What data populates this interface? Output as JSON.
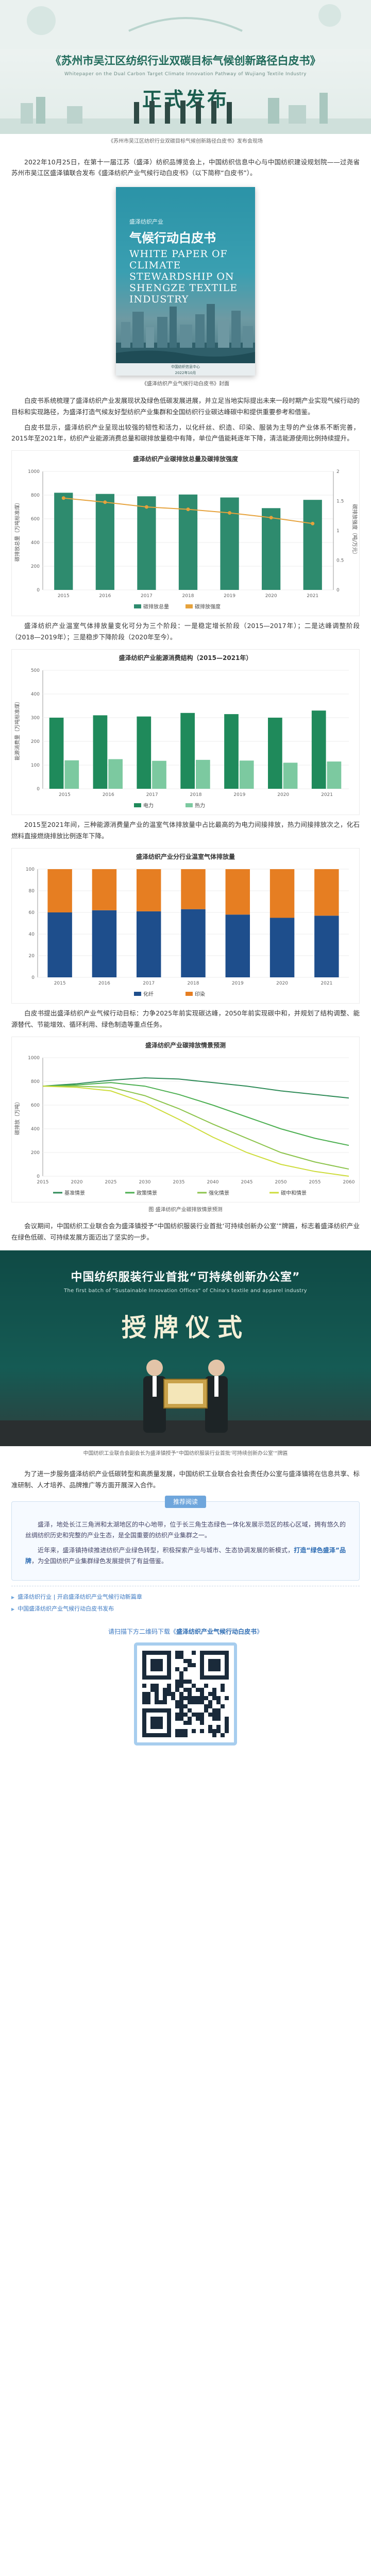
{
  "banner": {
    "title_line1": "《苏州市吴江区纺织行业双碳目标气候创新路径白皮书》",
    "title_line1_en": "Whitepaper on the Dual Carbon Target Climate Innovation Pathway of Wujiang Textile Industry",
    "title_line2": "正式发布"
  },
  "photo_caption": "《苏州市吴江区纺织行业双碳目标气候创新路径白皮书》发布会现场",
  "intro_paragraph": "2022年10月25日，在第十一届江苏（盛泽）纺织品博览会上，中国纺织信息中心与中国纺织建设规划院——过尧省苏州市吴江区盛泽镇联合发布《盛泽纺织产业气候行动白皮书》（以下简称“白皮书”）。",
  "cover": {
    "org": "盛泽纺织产业",
    "title": "气候行动白皮书",
    "title_en": "WHITE PAPER OF CLIMATE STEWARDSHIP ON SHENGZE TEXTILE INDUSTRY",
    "footer_line1": "中国纺织信息中心",
    "footer_line2": "2022年10月"
  },
  "cover_caption": "《盛泽纺织产业气候行动白皮书》封面",
  "paragraph_2": "白皮书系统梳理了盛泽纺织产业发展现状及绿色低碳发展进展，并立足当地实际提出未来一段时期产业实现气候行动的目标和实现路径，为盛泽打造气候友好型纺织产业集群和全国纺织行业碳达峰碳中和提供重要参考和借鉴。",
  "paragraph_3": "白皮书显示，盛泽纺织产业呈现出较强的韧性和活力，以化纤丝、织造、印染、服装为主导的产业体系不断完善，2015年至2021年，纺织产业能源消费总量和碳排放量稳中有降，单位产值能耗逐年下降，清洁能源使用比例持续提升。",
  "chart1": {
    "type": "bar",
    "title": "盛泽纺织产业碳排放总量及碳排放强度",
    "ylabel_left": "碳排放总量（万吨标准煤）",
    "ylabel_right": "碳排放强度（吨/万元）",
    "categories": [
      "2015",
      "2016",
      "2017",
      "2018",
      "2019",
      "2020",
      "2021"
    ],
    "series": [
      {
        "name": "碳排放总量",
        "values": [
          820,
          810,
          790,
          805,
          780,
          690,
          760
        ],
        "color": "#2e8b6e"
      },
      {
        "name": "碳排放强度",
        "values": [
          1.55,
          1.48,
          1.4,
          1.36,
          1.3,
          1.22,
          1.12
        ],
        "color": "#e6a23c"
      }
    ],
    "ylim_left": [
      0,
      1000
    ],
    "ylim_right": [
      0,
      2
    ]
  },
  "paragraph_4": "盛泽纺织产业温室气体排放量变化可分为三个阶段：一是稳定增长阶段（2015—2017年）；二是达峰调整阶段（2018—2019年）；三是稳步下降阶段（2020年至今）。",
  "chart2": {
    "type": "bar",
    "title": "盛泽纺织产业能源消费结构（2015—2021年）",
    "ylabel": "能源消费量（万吨标准煤）",
    "categories": [
      "2015",
      "2016",
      "2017",
      "2018",
      "2019",
      "2020",
      "2021"
    ],
    "series": [
      {
        "name": "电力",
        "values": [
          300,
          310,
          305,
          320,
          315,
          300,
          330
        ],
        "color": "#1f8a5b"
      },
      {
        "name": "热力",
        "values": [
          120,
          125,
          118,
          122,
          119,
          110,
          115
        ],
        "color": "#7cc9a0"
      }
    ],
    "ylim": [
      0,
      500
    ]
  },
  "paragraph_5": "2015至2021年间，三种能源消费量产业的温室气体排放量中占比最高的为电力间接排放，热力间接排放次之，化石燃料直接燃烧排放比例逐年下降。",
  "chart3": {
    "type": "bar",
    "title": "盛泽纺织产业分行业温室气体排放量",
    "categories": [
      "2015",
      "2016",
      "2017",
      "2018",
      "2019",
      "2020",
      "2021"
    ],
    "series": [
      {
        "name": "化纤",
        "values": [
          60,
          62,
          61,
          63,
          58,
          55,
          57
        ],
        "color": "#1e4e8c"
      },
      {
        "name": "印染",
        "values": [
          40,
          38,
          39,
          37,
          42,
          45,
          43
        ],
        "color": "#e67e22"
      }
    ],
    "ylim": [
      0,
      100
    ]
  },
  "paragraph_6": "白皮书提出盛泽纺织产业气候行动目标：力争2025年前实现碳达峰，2050年前实现碳中和，并规划了结构调整、能源替代、节能增效、循环利用、绿色制造等重点任务。",
  "chart4": {
    "type": "line",
    "title": "盛泽纺织产业碳排放情景预测",
    "ylabel": "碳排放（万吨）",
    "x": [
      "2015",
      "2020",
      "2025",
      "2030",
      "2035",
      "2040",
      "2045",
      "2050",
      "2055",
      "2060"
    ],
    "series": [
      {
        "name": "基准情景",
        "values": [
          760,
          780,
          810,
          830,
          820,
          790,
          760,
          720,
          690,
          660
        ],
        "color": "#2e8b57"
      },
      {
        "name": "政策情景",
        "values": [
          760,
          770,
          790,
          760,
          690,
          600,
          500,
          400,
          320,
          260
        ],
        "color": "#4caf50"
      },
      {
        "name": "强化情景",
        "values": [
          760,
          760,
          750,
          680,
          570,
          440,
          320,
          200,
          120,
          60
        ],
        "color": "#8bc34a"
      },
      {
        "name": "碳中和情景",
        "values": [
          760,
          750,
          720,
          620,
          480,
          330,
          200,
          100,
          40,
          0
        ],
        "color": "#cddc39"
      }
    ],
    "ylim": [
      0,
      1000
    ]
  },
  "chart4_caption": "图 盛泽纺织产业碳排放情景预测",
  "paragraph_7": "会议期间，中国纺织工业联合会为盛泽镇授予“中国纺织服装行业首批‘可持续创新办公室’”牌匾，标志着盛泽纺织产业在绿色低碳、可持续发展方面迈出了坚实的一步。",
  "ceremony": {
    "heading_cn": "中国纺织服装行业首批“可持续创新办公室”",
    "heading_en": "The first batch of \"Sustainable Innovation Offices\" of China's textile and apparel industry",
    "heading_main": "授牌仪式"
  },
  "ceremony_caption": "中国纺织工业联合会副会长为盛泽镇授予“中国纺织服装行业首批‘可持续创新办公室’”牌匾",
  "paragraph_8": "为了进一步服务盛泽纺织产业低碳转型和高质量发展，中国纺织工业联合会社会责任办公室与盛泽镇将在信息共享、标准研制、人才培养、品牌推广等方面开展深入合作。",
  "info_card": {
    "tag": "推荐阅读",
    "p1": "盛泽，地处长江三角洲和太湖地区的中心地带，位于长三角生态绿色一体化发展示范区的核心区域，拥有悠久的丝绸纺织历史和完整的产业生态，是全国重要的纺织产业集群之一。",
    "p2_prefix": "近年来，盛泽镇持续推进纺织产业绿色转型，积极探索产业与城市、生态协调发展的新模式，",
    "p2_highlight": "打造“绿色盛泽”品牌",
    "p2_suffix": "，为全国纺织产业集群绿色发展提供了有益借鉴。"
  },
  "related_links": [
    "盛泽纺织行业 | 开启盛泽纺织产业气候行动新篇章",
    "中国盛泽纺织产业气候行动白皮书发布"
  ],
  "download": {
    "prefix": "请扫描下方二维码下载《",
    "highlight": "盛泽纺织产业气候行动白皮书",
    "suffix": "》"
  }
}
